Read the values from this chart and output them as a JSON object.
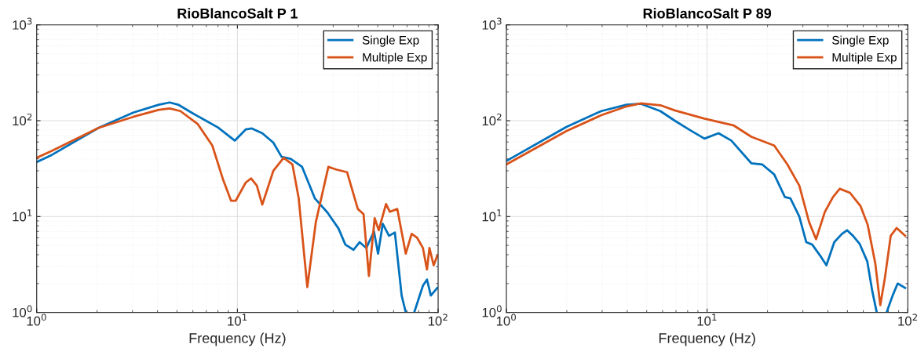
{
  "chart_data": [
    {
      "type": "line",
      "title": "RioBlancoSalt P 1",
      "xlabel": "Frequency (Hz)",
      "log": "xy",
      "grid": true,
      "legend": "top right",
      "xlim": [
        1,
        100
      ],
      "ylim": [
        1,
        1000
      ],
      "xticks": [
        {
          "value": 1,
          "label": "10$^{0}$"
        },
        {
          "value": 10,
          "label": "10$^{1}$"
        },
        {
          "value": 100,
          "label": "10$^{2}$"
        }
      ],
      "yticks": [
        {
          "value": 1,
          "label": "10$^{0}$"
        },
        {
          "value": 10,
          "label": "10$^{1}$"
        },
        {
          "value": 100,
          "label": "10$^{2}$"
        },
        {
          "value": 1000,
          "label": "10$^{3}$"
        }
      ],
      "series": [
        {
          "name": "Single Exp",
          "color": "#0072bd",
          "x": [
            1,
            1.19,
            2.03,
            3.04,
            4.06,
            4.6,
            5.07,
            6.05,
            8.0,
            9.7,
            11.0,
            11.8,
            13.3,
            15.1,
            16.6,
            18.4,
            21.0,
            24.3,
            28.1,
            31.9,
            34.5,
            37.9,
            40.6,
            43.9,
            47.9,
            50.2,
            53.0,
            56.9,
            60.9,
            65.8,
            69,
            72,
            76,
            84,
            88,
            92,
            99
          ],
          "values": [
            37,
            44,
            84,
            122,
            147,
            155,
            147,
            118,
            85,
            62,
            81,
            83,
            74,
            59,
            42,
            40,
            33,
            15.5,
            11,
            7.5,
            5.1,
            4.5,
            5.4,
            4.7,
            7,
            4.1,
            8.4,
            6.3,
            6.8,
            1.5,
            1.0,
            null,
            1.0,
            1.9,
            2.2,
            1.5,
            1.8
          ]
        },
        {
          "name": "Multiple Exp",
          "color": "#d95319",
          "x": [
            1,
            1.19,
            2.03,
            3.04,
            4.06,
            4.6,
            5.2,
            6.35,
            7.5,
            8.5,
            9.3,
            9.8,
            11.0,
            11.7,
            12.5,
            13.3,
            15.1,
            17.0,
            18.8,
            20.2,
            22.3,
            24.6,
            28.4,
            31.0,
            35.2,
            39.8,
            42.5,
            45.2,
            48.3,
            50.6,
            55.0,
            57.5,
            62.6,
            69.0,
            73.8,
            78.6,
            84,
            88,
            90.5,
            95,
            99
          ],
          "values": [
            41,
            48.5,
            84,
            110,
            130,
            134,
            126,
            92,
            55,
            24,
            14.6,
            14.6,
            22.6,
            25,
            21,
            13.3,
            30,
            41,
            35,
            15.5,
            1.84,
            8.8,
            33,
            31,
            29,
            12,
            10.6,
            2.4,
            9.6,
            7.2,
            13.5,
            11.2,
            12,
            4.1,
            6.6,
            6,
            4.7,
            2.8,
            4.7,
            3.1,
            3.9
          ]
        }
      ]
    },
    {
      "type": "line",
      "title": "RioBlancoSalt P 89",
      "xlabel": "Frequency (Hz)",
      "log": "xy",
      "grid": true,
      "legend": "top right",
      "xlim": [
        1,
        100
      ],
      "ylim": [
        1,
        1000
      ],
      "xticks": [
        {
          "value": 1,
          "label": "10$^{0}$"
        },
        {
          "value": 10,
          "label": "10$^{1}$"
        },
        {
          "value": 100,
          "label": "10$^{2}$"
        }
      ],
      "yticks": [
        {
          "value": 1,
          "label": "10$^{0}$"
        },
        {
          "value": 10,
          "label": "10$^{1}$"
        },
        {
          "value": 100,
          "label": "10$^{2}$"
        },
        {
          "value": 1000,
          "label": "10$^{3}$"
        }
      ],
      "series": [
        {
          "name": "Single Exp",
          "color": "#0072bd",
          "x": [
            1,
            1.99,
            2.97,
            3.97,
            4.68,
            5.85,
            6.9,
            8.2,
            9.7,
            11.4,
            13.2,
            16.6,
            18.8,
            21.6,
            24.4,
            26.0,
            28.8,
            31.2,
            33.4,
            36.6,
            39.3,
            43.0,
            47.0,
            49.8,
            53.3,
            57.5,
            62.8,
            66.5,
            70,
            74,
            78.4,
            84,
            89,
            97
          ],
          "values": [
            38,
            86,
            126,
            147,
            150,
            126,
            100,
            80,
            65,
            74,
            62,
            36,
            35,
            27.5,
            16,
            15.5,
            10,
            5.4,
            5.1,
            3.9,
            3.1,
            5.4,
            6.6,
            7.2,
            6.3,
            5.2,
            3.4,
            1.67,
            1.0,
            null,
            1.0,
            1.5,
            2.0,
            1.8
          ]
        },
        {
          "name": "Multiple Exp",
          "color": "#d95319",
          "x": [
            1,
            1.99,
            2.97,
            3.97,
            4.68,
            5.85,
            6.9,
            9.7,
            13.6,
            16.6,
            21.6,
            25.1,
            28.8,
            32.2,
            34.9,
            38.6,
            42.4,
            45.8,
            51.5,
            58.2,
            63.1,
            68.9,
            72.9,
            76.9,
            82.2,
            88,
            97
          ],
          "values": [
            35,
            78,
            114,
            141,
            152,
            145,
            128,
            105,
            89,
            68,
            55,
            35,
            21,
            8.8,
            5.8,
            11.2,
            16,
            19.5,
            17.7,
            12.8,
            8.2,
            3.2,
            1.19,
            2.3,
            6.3,
            7.6,
            6.3
          ]
        }
      ]
    }
  ]
}
